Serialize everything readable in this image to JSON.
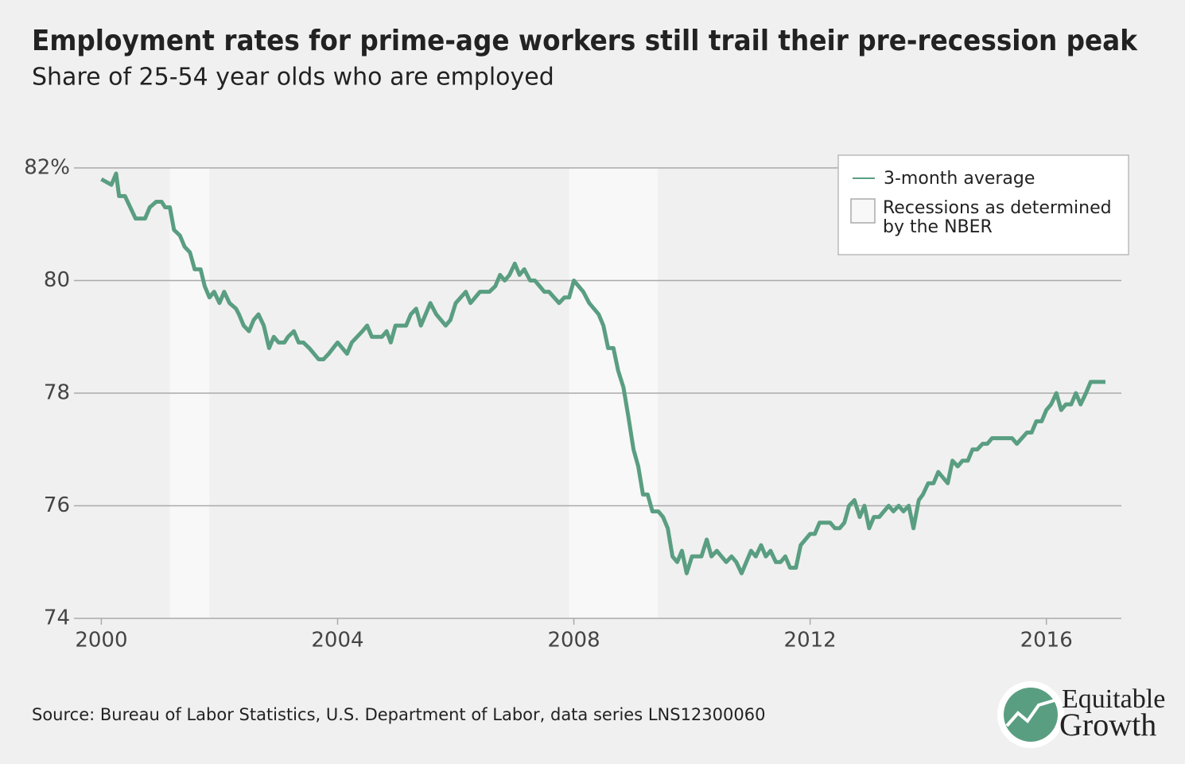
{
  "chart_data": {
    "type": "line",
    "title": "Employment rates for prime-age workers still trail their pre-recession peak",
    "subtitle": "Share of 25-54 year olds who are employed",
    "source": "Source: Bureau of Labor Statistics, U.S. Department of Labor, data series LNS12300060",
    "logo": [
      "Equitable",
      "Growth"
    ],
    "legend_recession": "Recessions as determined by the NBER",
    "recession_color": "#f8f8f8",
    "recessions": [
      [
        2001.16,
        2001.83
      ],
      [
        2007.92,
        2009.42
      ]
    ],
    "xlim": [
      1999.9,
      2017.27
    ],
    "ylim": [
      74,
      82
    ],
    "xticks": [
      2000,
      2004,
      2008,
      2012,
      2016
    ],
    "yticks": [
      {
        "value": 82,
        "label": "82%"
      },
      80,
      78,
      76,
      74
    ],
    "grid": true,
    "legend": "upper right",
    "x": [
      2000.0,
      2000.17,
      2000.25,
      2000.3,
      2000.4,
      2000.58,
      2000.74,
      2000.82,
      2000.93,
      2001.02,
      2001.08,
      2001.16,
      2001.23,
      2001.33,
      2001.41,
      2001.5,
      2001.58,
      2001.68,
      2001.75,
      2001.83,
      2001.91,
      2002.0,
      2002.08,
      2002.17,
      2002.28,
      2002.33,
      2002.41,
      2002.5,
      2002.58,
      2002.66,
      2002.75,
      2002.84,
      2002.92,
      2003.0,
      2003.1,
      2003.16,
      2003.26,
      2003.34,
      2003.42,
      2003.52,
      2003.68,
      2003.76,
      2003.85,
      2004.0,
      2004.16,
      2004.24,
      2004.42,
      2004.5,
      2004.58,
      2004.75,
      2004.83,
      2004.9,
      2004.98,
      2005.16,
      2005.24,
      2005.33,
      2005.41,
      2005.57,
      2005.67,
      2005.83,
      2005.91,
      2006.0,
      2006.17,
      2006.25,
      2006.41,
      2006.57,
      2006.67,
      2006.75,
      2006.83,
      2006.91,
      2007.0,
      2007.08,
      2007.16,
      2007.26,
      2007.34,
      2007.5,
      2007.58,
      2007.75,
      2007.84,
      2007.92,
      2008.0,
      2008.16,
      2008.26,
      2008.42,
      2008.5,
      2008.58,
      2008.67,
      2008.75,
      2008.84,
      2008.92,
      2009.01,
      2009.09,
      2009.17,
      2009.25,
      2009.33,
      2009.43,
      2009.51,
      2009.59,
      2009.67,
      2009.75,
      2009.83,
      2009.91,
      2010.0,
      2010.16,
      2010.25,
      2010.33,
      2010.42,
      2010.58,
      2010.67,
      2010.75,
      2010.84,
      2011.0,
      2011.08,
      2011.17,
      2011.25,
      2011.33,
      2011.42,
      2011.5,
      2011.58,
      2011.66,
      2011.76,
      2011.84,
      2012.0,
      2012.08,
      2012.16,
      2012.34,
      2012.42,
      2012.5,
      2012.58,
      2012.66,
      2012.75,
      2012.84,
      2012.92,
      2013.0,
      2013.08,
      2013.17,
      2013.33,
      2013.41,
      2013.5,
      2013.58,
      2013.67,
      2013.75,
      2013.84,
      2013.91,
      2014.0,
      2014.09,
      2014.17,
      2014.33,
      2014.41,
      2014.5,
      2014.58,
      2014.67,
      2014.75,
      2014.83,
      2014.92,
      2015.0,
      2015.08,
      2015.42,
      2015.5,
      2015.67,
      2015.75,
      2015.83,
      2015.92,
      2016.0,
      2016.08,
      2016.17,
      2016.25,
      2016.33,
      2016.42,
      2016.5,
      2016.58,
      2016.67,
      2016.75,
      2017.0
    ],
    "series": [
      {
        "name": "3-month average",
        "color": "#5a9e82",
        "values": [
          81.8,
          81.7,
          81.9,
          81.5,
          81.5,
          81.1,
          81.1,
          81.3,
          81.4,
          81.4,
          81.3,
          81.3,
          80.9,
          80.8,
          80.6,
          80.5,
          80.2,
          80.2,
          79.9,
          79.7,
          79.8,
          79.6,
          79.8,
          79.6,
          79.5,
          79.4,
          79.2,
          79.1,
          79.3,
          79.4,
          79.2,
          78.8,
          79.0,
          78.9,
          78.9,
          79.0,
          79.1,
          78.9,
          78.9,
          78.8,
          78.6,
          78.6,
          78.7,
          78.9,
          78.7,
          78.9,
          79.1,
          79.2,
          79.0,
          79.0,
          79.1,
          78.9,
          79.2,
          79.2,
          79.4,
          79.5,
          79.2,
          79.6,
          79.4,
          79.2,
          79.3,
          79.6,
          79.8,
          79.6,
          79.8,
          79.8,
          79.9,
          80.1,
          80.0,
          80.1,
          80.3,
          80.1,
          80.2,
          80.0,
          80.0,
          79.8,
          79.8,
          79.6,
          79.7,
          79.7,
          80.0,
          79.8,
          79.6,
          79.4,
          79.2,
          78.8,
          78.8,
          78.4,
          78.1,
          77.6,
          77.0,
          76.7,
          76.2,
          76.2,
          75.9,
          75.9,
          75.8,
          75.6,
          75.1,
          75.0,
          75.2,
          74.8,
          75.1,
          75.1,
          75.4,
          75.1,
          75.2,
          75.0,
          75.1,
          75.0,
          74.8,
          75.2,
          75.1,
          75.3,
          75.1,
          75.2,
          75.0,
          75.0,
          75.1,
          74.9,
          74.9,
          75.3,
          75.5,
          75.5,
          75.7,
          75.7,
          75.6,
          75.6,
          75.7,
          76.0,
          76.1,
          75.8,
          76.0,
          75.6,
          75.8,
          75.8,
          76.0,
          75.9,
          76.0,
          75.9,
          76.0,
          75.6,
          76.1,
          76.2,
          76.4,
          76.4,
          76.6,
          76.4,
          76.8,
          76.7,
          76.8,
          76.8,
          77.0,
          77.0,
          77.1,
          77.1,
          77.2,
          77.2,
          77.1,
          77.3,
          77.3,
          77.5,
          77.5,
          77.7,
          77.8,
          78.0,
          77.7,
          77.8,
          77.8,
          78.0,
          77.8,
          78.0,
          78.2,
          78.2
        ]
      }
    ]
  }
}
